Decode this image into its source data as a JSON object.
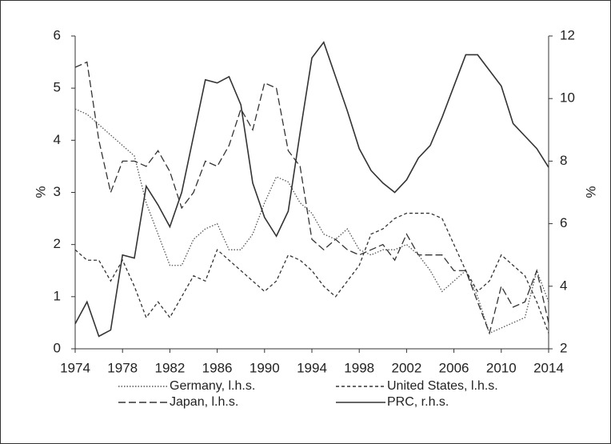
{
  "chart_data": {
    "type": "line",
    "x": [
      1974,
      1975,
      1976,
      1977,
      1978,
      1979,
      1980,
      1981,
      1982,
      1983,
      1984,
      1985,
      1986,
      1987,
      1988,
      1989,
      1990,
      1991,
      1992,
      1993,
      1994,
      1995,
      1996,
      1997,
      1998,
      1999,
      2000,
      2001,
      2002,
      2003,
      2004,
      2005,
      2006,
      2007,
      2008,
      2009,
      2010,
      2011,
      2012,
      2013,
      2014
    ],
    "xlim": [
      1974,
      2014
    ],
    "xticks": [
      1974,
      1978,
      1982,
      1986,
      1990,
      1994,
      1998,
      2002,
      2006,
      2010,
      2014
    ],
    "ylim": [
      0,
      6
    ],
    "yticks": [
      0,
      1,
      2,
      3,
      4,
      5,
      6
    ],
    "ylabel": "%",
    "y2lim": [
      2,
      12
    ],
    "y2ticks": [
      2,
      4,
      6,
      8,
      10,
      12
    ],
    "y2label": "%",
    "series": [
      {
        "name": "Germany, l.h.s.",
        "color": "#555555",
        "style": "dotted",
        "values": [
          4.6,
          4.5,
          4.3,
          4.1,
          3.9,
          3.7,
          2.8,
          2.2,
          1.6,
          1.6,
          2.1,
          2.3,
          2.4,
          1.9,
          1.9,
          2.2,
          2.8,
          3.3,
          3.2,
          2.8,
          2.6,
          2.2,
          2.1,
          2.3,
          1.9,
          1.8,
          1.9,
          1.9,
          2.0,
          1.8,
          1.5,
          1.1,
          1.3,
          1.5,
          1.0,
          0.3,
          0.4,
          0.5,
          0.6,
          1.5,
          0.9
        ]
      },
      {
        "name": "United States, l.h.s.",
        "color": "#333333",
        "style": "dashed",
        "values": [
          1.9,
          1.7,
          1.7,
          1.3,
          1.7,
          1.2,
          0.6,
          0.9,
          0.6,
          1.0,
          1.4,
          1.3,
          1.9,
          1.7,
          1.5,
          1.3,
          1.1,
          1.3,
          1.8,
          1.7,
          1.5,
          1.2,
          1.0,
          1.3,
          1.6,
          2.2,
          2.3,
          2.5,
          2.6,
          2.6,
          2.6,
          2.5,
          2.0,
          1.5,
          1.1,
          1.3,
          1.8,
          1.6,
          1.4,
          0.9,
          0.3
        ]
      },
      {
        "name": "Japan, l.h.s.",
        "color": "#333333",
        "style": "long-dashed",
        "values": [
          5.4,
          5.5,
          4.0,
          3.0,
          3.6,
          3.6,
          3.5,
          3.8,
          3.4,
          2.7,
          3.0,
          3.6,
          3.5,
          3.9,
          4.6,
          4.2,
          5.1,
          5.0,
          3.8,
          3.5,
          2.1,
          1.9,
          2.1,
          1.9,
          1.8,
          1.9,
          2.0,
          1.7,
          2.2,
          1.8,
          1.8,
          1.8,
          1.5,
          1.5,
          0.9,
          0.3,
          1.2,
          0.8,
          0.9,
          1.5,
          0.5
        ]
      },
      {
        "name": "PRC, r.h.s.",
        "color": "#333333",
        "style": "solid",
        "axis": "y2",
        "values": [
          2.8,
          3.5,
          2.4,
          2.6,
          5.0,
          4.9,
          7.2,
          6.6,
          5.9,
          7.0,
          8.8,
          10.6,
          10.5,
          10.7,
          9.8,
          7.3,
          6.2,
          5.6,
          6.4,
          8.9,
          11.3,
          11.8,
          10.7,
          9.6,
          8.4,
          7.7,
          7.3,
          7.0,
          7.4,
          8.1,
          8.5,
          9.4,
          10.4,
          11.4,
          11.4,
          10.9,
          10.4,
          9.2,
          8.8,
          8.4,
          7.8
        ]
      }
    ]
  }
}
